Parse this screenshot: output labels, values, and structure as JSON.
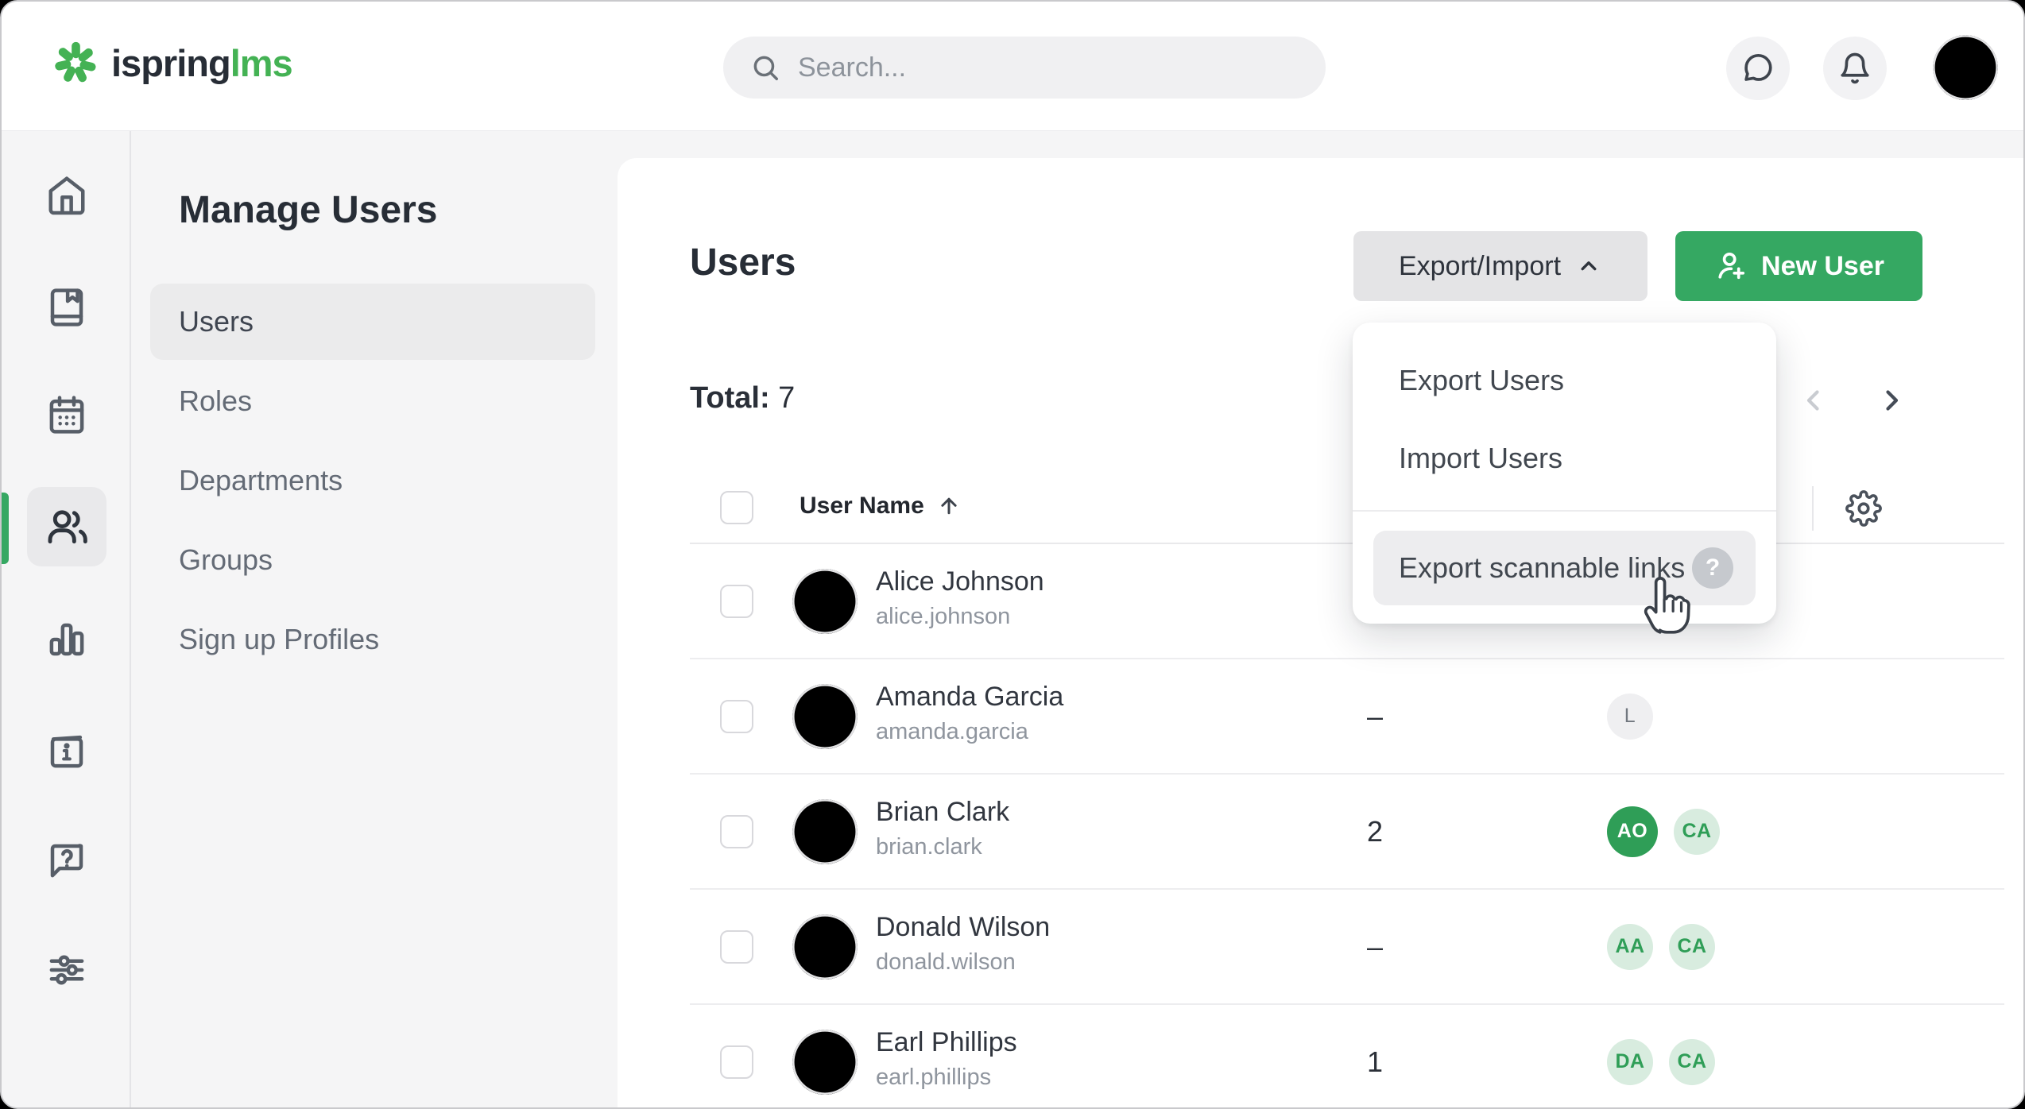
{
  "topbar": {
    "logo": {
      "brand": "ispring",
      "product": "lms"
    },
    "search": {
      "placeholder": "Search..."
    },
    "icons": [
      "chat-bubble",
      "bell",
      "account-avatar"
    ]
  },
  "rail": {
    "items": [
      {
        "icon": "home"
      },
      {
        "icon": "book"
      },
      {
        "icon": "calendar"
      },
      {
        "icon": "users",
        "active": true
      },
      {
        "icon": "bar-chart"
      },
      {
        "icon": "info-board"
      },
      {
        "icon": "help-bubble"
      },
      {
        "icon": "sliders"
      }
    ]
  },
  "sidebar": {
    "title": "Manage Users",
    "items": [
      {
        "label": "Users",
        "active": true
      },
      {
        "label": "Roles"
      },
      {
        "label": "Departments"
      },
      {
        "label": "Groups"
      },
      {
        "label": "Sign up Profiles"
      }
    ]
  },
  "page": {
    "title": "Users",
    "buttons": {
      "export_import": "Export/Import",
      "new_user": "New User"
    },
    "total_label": "Total:",
    "total_value": "7",
    "dropdown": {
      "items": [
        {
          "label": "Export Users"
        },
        {
          "label": "Import Users"
        }
      ],
      "highlighted": {
        "label": "Export scannable links",
        "help_glyph": "?"
      }
    },
    "table": {
      "header": {
        "user_name": "User Name",
        "sort": "asc"
      },
      "rows": [
        {
          "name": "Alice Johnson",
          "username": "alice.johnson",
          "metric": "",
          "badges": [],
          "avatar": {
            "bg": "#f3e9dc",
            "skin": "#e9b68c",
            "hair": "#39281f",
            "shirt": "#f5c431"
          }
        },
        {
          "name": "Amanda Garcia",
          "username": "amanda.garcia",
          "metric": "–",
          "badges": [
            {
              "label": "L",
              "variant": "gray"
            }
          ],
          "avatar": {
            "bg": "#efe7e0",
            "skin": "#eab98f",
            "hair": "#33251d",
            "shirt": "#a8c6e8"
          }
        },
        {
          "name": "Brian Clark",
          "username": "brian.clark",
          "metric": "2",
          "badges": [
            {
              "label": "AO",
              "variant": "solid"
            },
            {
              "label": "CA",
              "variant": "light"
            }
          ],
          "avatar": {
            "bg": "#efeae4",
            "skin": "#dca87a",
            "hair": "#2d231b",
            "shirt": "#23272f"
          }
        },
        {
          "name": "Donald Wilson",
          "username": "donald.wilson",
          "metric": "–",
          "badges": [
            {
              "label": "AA",
              "variant": "light"
            },
            {
              "label": "CA",
              "variant": "light"
            }
          ],
          "avatar": {
            "bg": "#ece5df",
            "skin": "#e3aa7e",
            "hair": "#452f22",
            "shirt": "#6e332e"
          }
        },
        {
          "name": "Earl Phillips",
          "username": "earl.phillips",
          "metric": "1",
          "badges": [
            {
              "label": "DA",
              "variant": "light"
            },
            {
              "label": "CA",
              "variant": "light"
            }
          ],
          "avatar": {
            "bg": "#e9e3dd",
            "skin": "#e2b28a",
            "hair": "#8a7355",
            "shirt": "#dfe5ec"
          }
        }
      ]
    }
  },
  "account": {
    "avatar": {
      "bg": "#eef1f4",
      "skin": "#d9a375",
      "hair": "#241c15",
      "shirt": "#22262e"
    }
  },
  "colors": {
    "accent_green": "#35a862",
    "logo_green": "#44b254",
    "badge_green": "#2f9e57",
    "badge_light_bg": "#d8ecdf"
  }
}
